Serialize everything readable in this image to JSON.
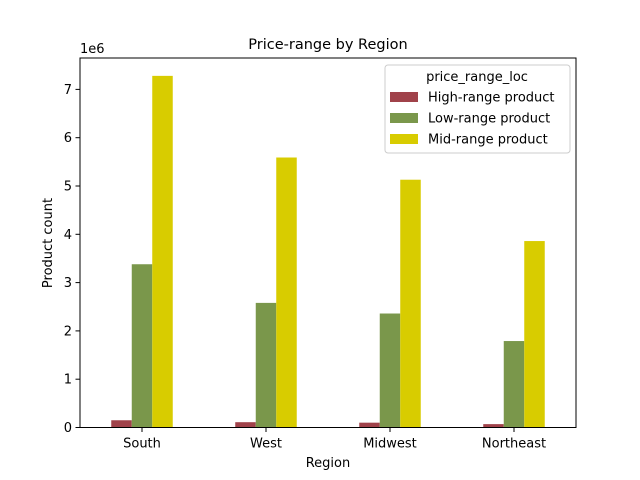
{
  "chart_data": {
    "type": "bar",
    "title": "Price-range by Region",
    "xlabel": "Region",
    "ylabel": "Product count",
    "y_scale_label": "1e6",
    "y_scale": 1000000,
    "ylim": [
      0,
      7.65
    ],
    "yticks": [
      0,
      1,
      2,
      3,
      4,
      5,
      6,
      7
    ],
    "grid": false,
    "legend_position": "top-right",
    "legend_title": "price_range_loc",
    "categories": [
      "South",
      "West",
      "Midwest",
      "Northeast"
    ],
    "series": [
      {
        "name": "High-range product",
        "color": "#a0424a",
        "values": [
          0.15,
          0.11,
          0.1,
          0.07
        ]
      },
      {
        "name": "Low-range product",
        "color": "#7a974b",
        "values": [
          3.38,
          2.58,
          2.36,
          1.79
        ]
      },
      {
        "name": "Mid-range product",
        "color": "#d8cc00",
        "values": [
          7.28,
          5.59,
          5.13,
          3.86
        ]
      }
    ]
  }
}
